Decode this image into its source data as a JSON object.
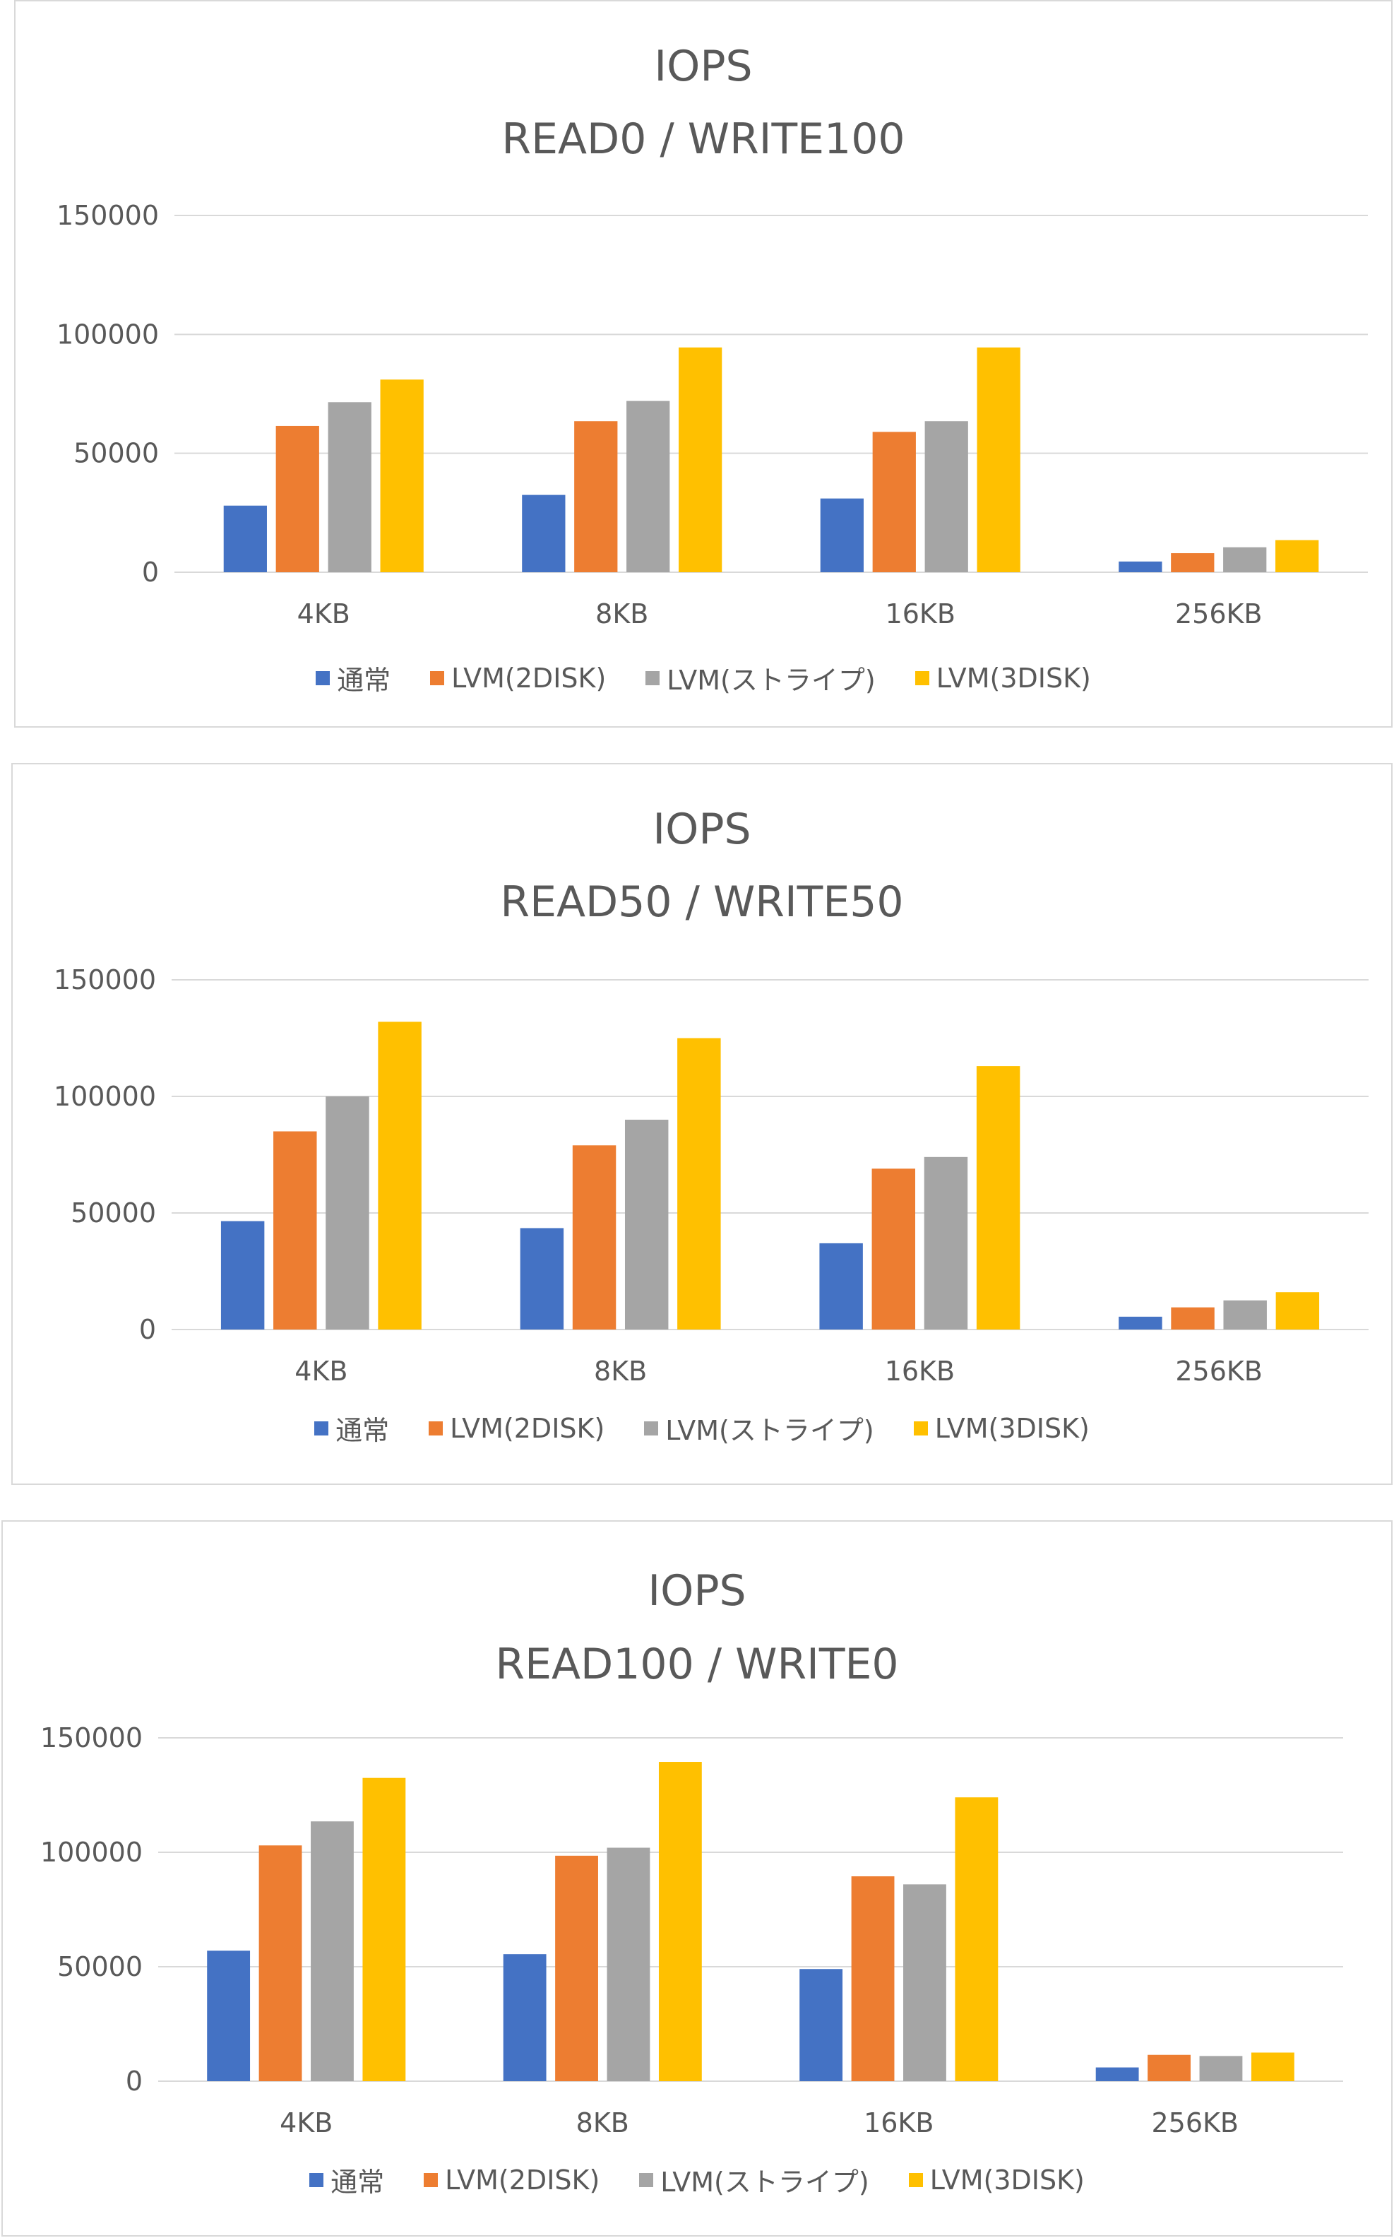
{
  "chart_data": [
    {
      "type": "bar",
      "title": "IOPS",
      "subtitle": "READ0 / WRITE100",
      "categories": [
        "4KB",
        "8KB",
        "16KB",
        "256KB"
      ],
      "series": [
        {
          "name": "通常",
          "color": "#4472c4",
          "values": [
            28000,
            32500,
            31000,
            4500
          ]
        },
        {
          "name": "LVM(2DISK)",
          "color": "#ed7d31",
          "values": [
            61500,
            63500,
            59000,
            8000
          ]
        },
        {
          "name": "LVM(ストライプ)",
          "color": "#a5a5a5",
          "values": [
            71500,
            72000,
            63500,
            10500
          ]
        },
        {
          "name": "LVM(3DISK)",
          "color": "#ffc000",
          "values": [
            81000,
            94500,
            94500,
            13500
          ]
        }
      ],
      "yticks": [
        0,
        50000,
        100000,
        150000
      ],
      "ylim": [
        0,
        150000
      ],
      "grid": true,
      "legend": "bottom"
    },
    {
      "type": "bar",
      "title": "IOPS",
      "subtitle": "READ50 / WRITE50",
      "categories": [
        "4KB",
        "8KB",
        "16KB",
        "256KB"
      ],
      "series": [
        {
          "name": "通常",
          "color": "#4472c4",
          "values": [
            46500,
            43500,
            37000,
            5500
          ]
        },
        {
          "name": "LVM(2DISK)",
          "color": "#ed7d31",
          "values": [
            85000,
            79000,
            69000,
            9500
          ]
        },
        {
          "name": "LVM(ストライプ)",
          "color": "#a5a5a5",
          "values": [
            100000,
            90000,
            74000,
            12500
          ]
        },
        {
          "name": "LVM(3DISK)",
          "color": "#ffc000",
          "values": [
            132000,
            125000,
            113000,
            16000
          ]
        }
      ],
      "yticks": [
        0,
        50000,
        100000,
        150000
      ],
      "ylim": [
        0,
        150000
      ],
      "grid": true,
      "legend": "bottom"
    },
    {
      "type": "bar",
      "title": "IOPS",
      "subtitle": "READ100 / WRITE0",
      "categories": [
        "4KB",
        "8KB",
        "16KB",
        "256KB"
      ],
      "series": [
        {
          "name": "通常",
          "color": "#4472c4",
          "values": [
            57000,
            55500,
            49000,
            6000
          ]
        },
        {
          "name": "LVM(2DISK)",
          "color": "#ed7d31",
          "values": [
            103000,
            98500,
            89500,
            11500
          ]
        },
        {
          "name": "LVM(ストライプ)",
          "color": "#a5a5a5",
          "values": [
            113500,
            102000,
            86000,
            11000
          ]
        },
        {
          "name": "LVM(3DISK)",
          "color": "#ffc000",
          "values": [
            132500,
            139500,
            124000,
            12500
          ]
        }
      ],
      "yticks": [
        0,
        50000,
        100000,
        150000
      ],
      "ylim": [
        0,
        150000
      ],
      "grid": true,
      "legend": "bottom"
    }
  ]
}
